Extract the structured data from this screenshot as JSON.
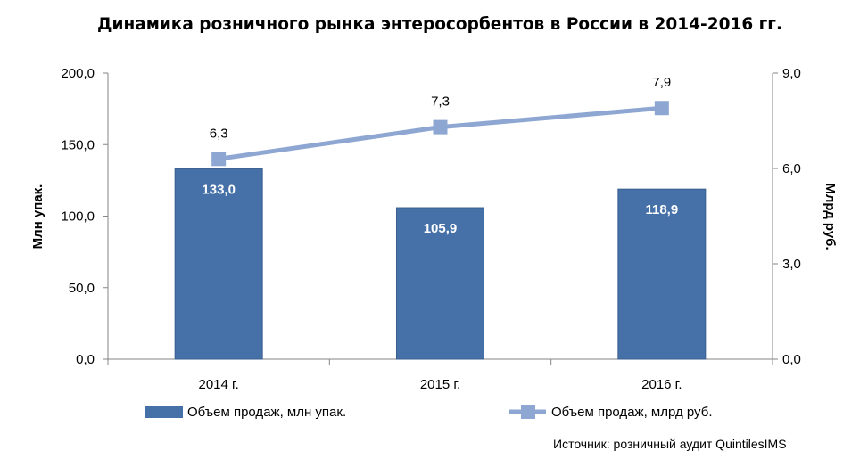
{
  "chart_data": {
    "type": "bar",
    "title": "Динамика розничного рынка энтеросорбентов в России в 2014-2016 гг.",
    "categories": [
      "2014 г.",
      "2015 г.",
      "2016 г."
    ],
    "series": [
      {
        "name": "Объем продаж, млн упак.",
        "type": "bar",
        "axis": "left",
        "values": [
          133.0,
          105.9,
          118.9
        ],
        "labels": [
          "133,0",
          "105,9",
          "118,9"
        ],
        "color": "#4571A8"
      },
      {
        "name": "Объем продаж, млрд руб.",
        "type": "line",
        "axis": "right",
        "values": [
          6.3,
          7.3,
          7.9
        ],
        "labels": [
          "6,3",
          "7,3",
          "7,9"
        ],
        "color": "#8EA7D2"
      }
    ],
    "ylabel": "Млн упак.",
    "ylabel_right": "Млрд руб.",
    "ylim": [
      0,
      200
    ],
    "ylim_right": [
      0,
      9
    ],
    "yticks": [
      "0,0",
      "50,0",
      "100,0",
      "150,0",
      "200,0"
    ],
    "yticks_right": [
      "0,0",
      "3,0",
      "6,0",
      "9,0"
    ],
    "grid": false,
    "legend": "bottom"
  },
  "source": "Источник: розничный аудит QuintilesIMS"
}
